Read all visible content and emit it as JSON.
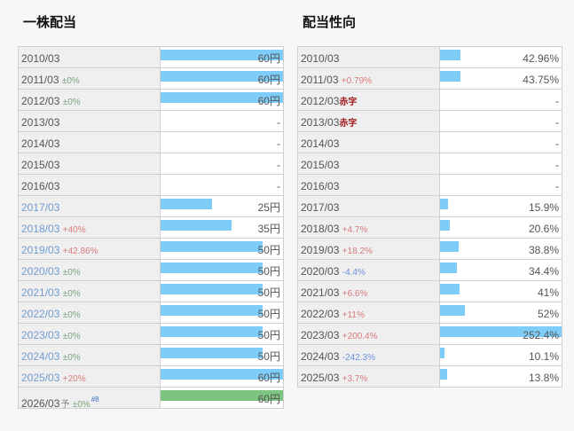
{
  "dividend_panel": {
    "title": "一株配当",
    "unit": "円",
    "rows": [
      {
        "year": "2010/03",
        "change": "",
        "value": "60",
        "ratio": 1.0,
        "style": "gray"
      },
      {
        "year": "2011/03",
        "change": "±0%",
        "value": "60",
        "ratio": 1.0,
        "style": "gray"
      },
      {
        "year": "2012/03",
        "change": "±0%",
        "value": "60",
        "ratio": 1.0,
        "style": "gray"
      },
      {
        "year": "2013/03",
        "change": "",
        "value": "-",
        "ratio": 0,
        "style": "gray"
      },
      {
        "year": "2014/03",
        "change": "",
        "value": "-",
        "ratio": 0,
        "style": "gray"
      },
      {
        "year": "2015/03",
        "change": "",
        "value": "-",
        "ratio": 0,
        "style": "gray"
      },
      {
        "year": "2016/03",
        "change": "",
        "value": "-",
        "ratio": 0,
        "style": "gray"
      },
      {
        "year": "2017/03",
        "change": "",
        "value": "25",
        "ratio": 0.4167,
        "style": "blue"
      },
      {
        "year": "2018/03",
        "change": "+40%",
        "value": "35",
        "ratio": 0.5833,
        "style": "blue"
      },
      {
        "year": "2019/03",
        "change": "+42.86%",
        "value": "50",
        "ratio": 0.8333,
        "style": "blue"
      },
      {
        "year": "2020/03",
        "change": "±0%",
        "value": "50",
        "ratio": 0.8333,
        "style": "blue"
      },
      {
        "year": "2021/03",
        "change": "±0%",
        "value": "50",
        "ratio": 0.8333,
        "style": "blue"
      },
      {
        "year": "2022/03",
        "change": "±0%",
        "value": "50",
        "ratio": 0.8333,
        "style": "blue"
      },
      {
        "year": "2023/03",
        "change": "±0%",
        "value": "50",
        "ratio": 0.8333,
        "style": "blue"
      },
      {
        "year": "2024/03",
        "change": "±0%",
        "value": "50",
        "ratio": 0.8333,
        "style": "blue"
      },
      {
        "year": "2025/03",
        "change": "+20%",
        "value": "60",
        "ratio": 1.0,
        "style": "blue"
      },
      {
        "year": "2026/03",
        "forecast_mark": "予",
        "change": "±0%",
        "note": "#8",
        "value": "60",
        "ratio": 1.0,
        "style": "gray",
        "forecast": true
      }
    ]
  },
  "payout_panel": {
    "title": "配当性向",
    "deficit_label": "赤字",
    "rows": [
      {
        "year": "2010/03",
        "change": "",
        "value": "42.96%",
        "ratio": 0.17
      },
      {
        "year": "2011/03",
        "change": "+0.79%",
        "value": "43.75%",
        "ratio": 0.17
      },
      {
        "year": "2012/03",
        "deficit": true,
        "change": "",
        "value": "-",
        "ratio": 0
      },
      {
        "year": "2013/03",
        "deficit": true,
        "change": "",
        "value": "-",
        "ratio": 0
      },
      {
        "year": "2014/03",
        "change": "",
        "value": "-",
        "ratio": 0
      },
      {
        "year": "2015/03",
        "change": "",
        "value": "-",
        "ratio": 0
      },
      {
        "year": "2016/03",
        "change": "",
        "value": "-",
        "ratio": 0
      },
      {
        "year": "2017/03",
        "change": "",
        "value": "15.9%",
        "ratio": 0.063
      },
      {
        "year": "2018/03",
        "change": "+4.7%",
        "value": "20.6%",
        "ratio": 0.082
      },
      {
        "year": "2019/03",
        "change": "+18.2%",
        "value": "38.8%",
        "ratio": 0.154
      },
      {
        "year": "2020/03",
        "change": "-4.4%",
        "value": "34.4%",
        "ratio": 0.136
      },
      {
        "year": "2021/03",
        "change": "+6.6%",
        "value": "41%",
        "ratio": 0.162
      },
      {
        "year": "2022/03",
        "change": "+11%",
        "value": "52%",
        "ratio": 0.206
      },
      {
        "year": "2023/03",
        "change": "+200.4%",
        "value": "252.4%",
        "ratio": 1.0
      },
      {
        "year": "2024/03",
        "change": "-242.3%",
        "value": "10.1%",
        "ratio": 0.04
      },
      {
        "year": "2025/03",
        "change": "+3.7%",
        "value": "13.8%",
        "ratio": 0.055
      }
    ]
  }
}
